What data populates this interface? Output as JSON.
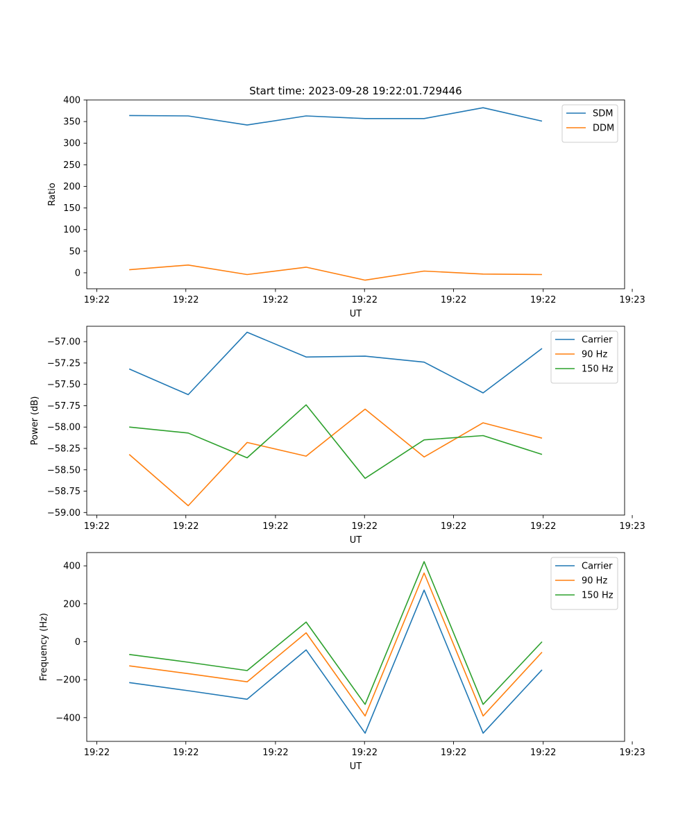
{
  "figure": {
    "title": "Start time: 2023-09-28 19:22:01.729446",
    "background": "#ffffff"
  },
  "chart_data": [
    {
      "type": "line",
      "title": "Start time: 2023-09-28 19:22:01.729446",
      "xlabel": "UT",
      "ylabel": "Ratio",
      "x": [
        1,
        2,
        3,
        4,
        5,
        6,
        7,
        8
      ],
      "xlim": [
        0.28,
        9.4
      ],
      "xticks": [
        0.45,
        1.96,
        3.48,
        4.99,
        6.5,
        8.02,
        9.53
      ],
      "xtick_labels": [
        "19:22",
        "19:22",
        "19:22",
        "19:22",
        "19:22",
        "19:22",
        "19:23"
      ],
      "ylim": [
        -37,
        400
      ],
      "yticks": [
        0,
        50,
        100,
        150,
        200,
        250,
        300,
        350,
        400
      ],
      "ytick_labels": [
        "0",
        "50",
        "100",
        "150",
        "200",
        "250",
        "300",
        "350",
        "400"
      ],
      "legend": "top-right",
      "series": [
        {
          "name": "SDM",
          "color": "#1f77b4",
          "values": [
            364,
            363,
            342,
            363,
            357,
            357,
            382,
            351
          ]
        },
        {
          "name": "DDM",
          "color": "#ff7f0e",
          "values": [
            7,
            18,
            -4,
            13,
            -17,
            4,
            -3,
            -4
          ]
        }
      ]
    },
    {
      "type": "line",
      "title": "",
      "xlabel": "UT",
      "ylabel": "Power (dB)",
      "x": [
        1,
        2,
        3,
        4,
        5,
        6,
        7,
        8
      ],
      "xlim": [
        0.28,
        9.4
      ],
      "xticks": [
        0.45,
        1.96,
        3.48,
        4.99,
        6.5,
        8.02,
        9.53
      ],
      "xtick_labels": [
        "19:22",
        "19:22",
        "19:22",
        "19:22",
        "19:22",
        "19:22",
        "19:23"
      ],
      "ylim": [
        -59.03,
        -56.82
      ],
      "yticks": [
        -59.0,
        -58.75,
        -58.5,
        -58.25,
        -58.0,
        -57.75,
        -57.5,
        -57.25,
        -57.0
      ],
      "ytick_labels": [
        "−59.00",
        "−58.75",
        "−58.50",
        "−58.25",
        "−58.00",
        "−57.75",
        "−57.50",
        "−57.25",
        "−57.00"
      ],
      "legend": "top-right",
      "series": [
        {
          "name": "Carrier",
          "color": "#1f77b4",
          "values": [
            -57.32,
            -57.62,
            -56.89,
            -57.18,
            -57.17,
            -57.24,
            -57.6,
            -57.08
          ]
        },
        {
          "name": "90 Hz",
          "color": "#ff7f0e",
          "values": [
            -58.32,
            -58.92,
            -58.18,
            -58.34,
            -57.79,
            -58.35,
            -57.95,
            -58.13
          ]
        },
        {
          "name": "150 Hz",
          "color": "#2ca02c",
          "values": [
            -58.0,
            -58.07,
            -58.36,
            -57.74,
            -58.6,
            -58.15,
            -58.1,
            -58.32
          ]
        }
      ]
    },
    {
      "type": "line",
      "title": "",
      "xlabel": "UT",
      "ylabel": "Frequency (Hz)",
      "x": [
        1,
        2,
        3,
        4,
        5,
        6,
        7,
        8
      ],
      "xlim": [
        0.28,
        9.4
      ],
      "xticks": [
        0.45,
        1.96,
        3.48,
        4.99,
        6.5,
        8.02,
        9.53
      ],
      "xtick_labels": [
        "19:22",
        "19:22",
        "19:22",
        "19:22",
        "19:22",
        "19:22",
        "19:23"
      ],
      "ylim": [
        -525,
        470
      ],
      "yticks": [
        -400,
        -200,
        0,
        200,
        400
      ],
      "ytick_labels": [
        "−400",
        "−200",
        "0",
        "200",
        "400"
      ],
      "legend": "top-right",
      "series": [
        {
          "name": "Carrier",
          "color": "#1f77b4",
          "values": [
            -215,
            -258,
            -303,
            -43,
            -482,
            272,
            -482,
            -148
          ]
        },
        {
          "name": "90 Hz",
          "color": "#ff7f0e",
          "values": [
            -127,
            -168,
            -211,
            47,
            -391,
            362,
            -391,
            -55
          ]
        },
        {
          "name": "150 Hz",
          "color": "#2ca02c",
          "values": [
            -67,
            -108,
            -152,
            104,
            -330,
            422,
            -330,
            0
          ]
        }
      ]
    }
  ]
}
